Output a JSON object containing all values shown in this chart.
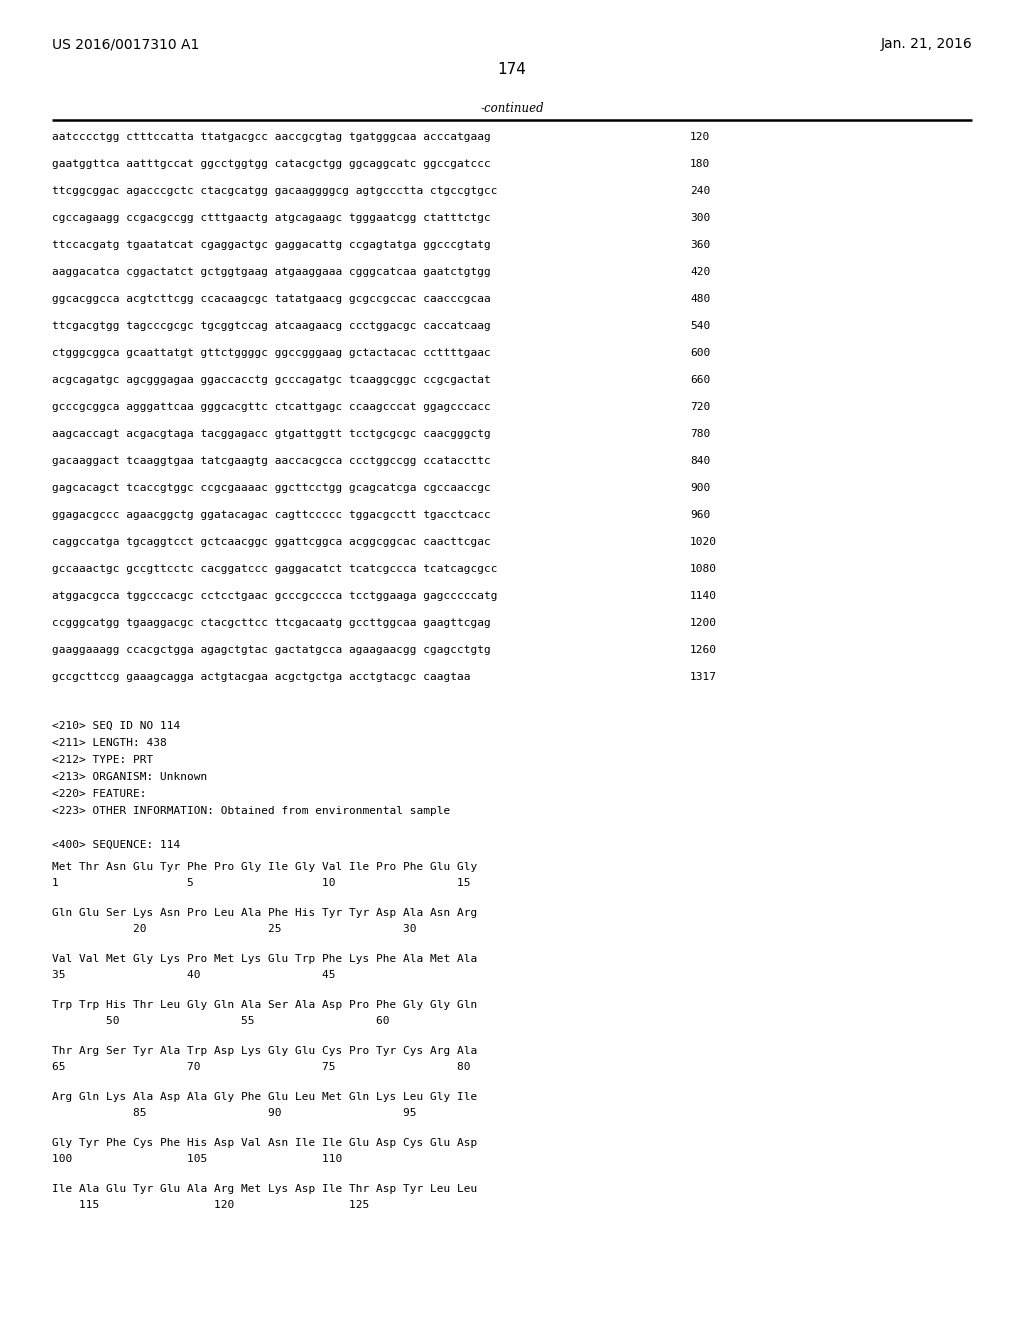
{
  "header_left": "US 2016/0017310 A1",
  "header_right": "Jan. 21, 2016",
  "page_number": "174",
  "continued_label": "-continued",
  "background_color": "#ffffff",
  "text_color": "#000000",
  "sequence_lines": [
    [
      "aatcccctgg ctttccatta ttatgacgcc aaccgcgtag tgatgggcaa acccatgaag",
      "120"
    ],
    [
      "gaatggttca aatttgccat ggcctggtgg catacgctgg ggcaggcatc ggccgatccc",
      "180"
    ],
    [
      "ttcggcggac agacccgctc ctacgcatgg gacaaggggcg agtgccctta ctgccgtgcc",
      "240"
    ],
    [
      "cgccagaagg ccgacgccgg ctttgaactg atgcagaagc tgggaatcgg ctatttctgc",
      "300"
    ],
    [
      "ttccacgatg tgaatatcat cgaggactgc gaggacattg ccgagtatga ggcccgtatg",
      "360"
    ],
    [
      "aaggacatca cggactatct gctggtgaag atgaaggaaa cgggcatcaa gaatctgtgg",
      "420"
    ],
    [
      "ggcacggcca acgtcttcgg ccacaagcgc tatatgaacg gcgccgccac caacccgcaa",
      "480"
    ],
    [
      "ttcgacgtgg tagcccgcgc tgcggtccag atcaagaacg ccctggacgc caccatcaag",
      "540"
    ],
    [
      "ctgggcggca gcaattatgt gttctggggc ggccgggaag gctactacac ccttttgaac",
      "600"
    ],
    [
      "acgcagatgc agcgggagaa ggaccacctg gcccagatgc tcaaggcggc ccgcgactat",
      "660"
    ],
    [
      "gcccgcggca agggattcaa gggcacgttc ctcattgagc ccaagcccat ggagcccacc",
      "720"
    ],
    [
      "aagcaccagt acgacgtaga tacggagacc gtgattggtt tcctgcgcgc caacgggctg",
      "780"
    ],
    [
      "gacaaggact tcaaggtgaa tatcgaagtg aaccacgcca ccctggccgg ccataccttc",
      "840"
    ],
    [
      "gagcacagct tcaccgtggc ccgcgaaaac ggcttcctgg gcagcatcga cgccaaccgc",
      "900"
    ],
    [
      "ggagacgccc agaacggctg ggatacagac cagttccccc tggacgcctt tgacctcacc",
      "960"
    ],
    [
      "caggccatga tgcaggtcct gctcaacggc ggattcggca acggcggcac caacttcgac",
      "1020"
    ],
    [
      "gccaaactgc gccgttcctc cacggatccc gaggacatct tcatcgccca tcatcagcgcc",
      "1080"
    ],
    [
      "atggacgcca tggcccacgc cctcctgaac gcccgcccca tcctggaaga gagcccccatg",
      "1140"
    ],
    [
      "ccgggcatgg tgaaggacgc ctacgcttcc ttcgacaatg gccttggcaa gaagttcgag",
      "1200"
    ],
    [
      "gaaggaaagg ccacgctgga agagctgtac gactatgcca agaagaacgg cgagcctgtg",
      "1260"
    ],
    [
      "gccgcttccg gaaagcagga actgtacgaa acgctgctga acctgtacgc caagtaa",
      "1317"
    ]
  ],
  "metadata_lines": [
    "<210> SEQ ID NO 114",
    "<211> LENGTH: 438",
    "<212> TYPE: PRT",
    "<213> ORGANISM: Unknown",
    "<220> FEATURE:",
    "<223> OTHER INFORMATION: Obtained from environmental sample"
  ],
  "sequence_label": "<400> SEQUENCE: 114",
  "protein_blocks": [
    {
      "amino_acids": "Met Thr Asn Glu Tyr Phe Pro Gly Ile Gly Val Ile Pro Phe Glu Gly",
      "numbers": "1                   5                   10                  15"
    },
    {
      "amino_acids": "Gln Glu Ser Lys Asn Pro Leu Ala Phe His Tyr Tyr Asp Ala Asn Arg",
      "numbers": "            20                  25                  30"
    },
    {
      "amino_acids": "Val Val Met Gly Lys Pro Met Lys Glu Trp Phe Lys Phe Ala Met Ala",
      "numbers": "35                  40                  45"
    },
    {
      "amino_acids": "Trp Trp His Thr Leu Gly Gln Ala Ser Ala Asp Pro Phe Gly Gly Gln",
      "numbers": "        50                  55                  60"
    },
    {
      "amino_acids": "Thr Arg Ser Tyr Ala Trp Asp Lys Gly Glu Cys Pro Tyr Cys Arg Ala",
      "numbers": "65                  70                  75                  80"
    },
    {
      "amino_acids": "Arg Gln Lys Ala Asp Ala Gly Phe Glu Leu Met Gln Lys Leu Gly Ile",
      "numbers": "            85                  90                  95"
    },
    {
      "amino_acids": "Gly Tyr Phe Cys Phe His Asp Val Asn Ile Ile Glu Asp Cys Glu Asp",
      "numbers": "100                 105                 110"
    },
    {
      "amino_acids": "Ile Ala Glu Tyr Glu Ala Arg Met Lys Asp Ile Thr Asp Tyr Leu Leu",
      "numbers": "    115                 120                 125"
    }
  ]
}
